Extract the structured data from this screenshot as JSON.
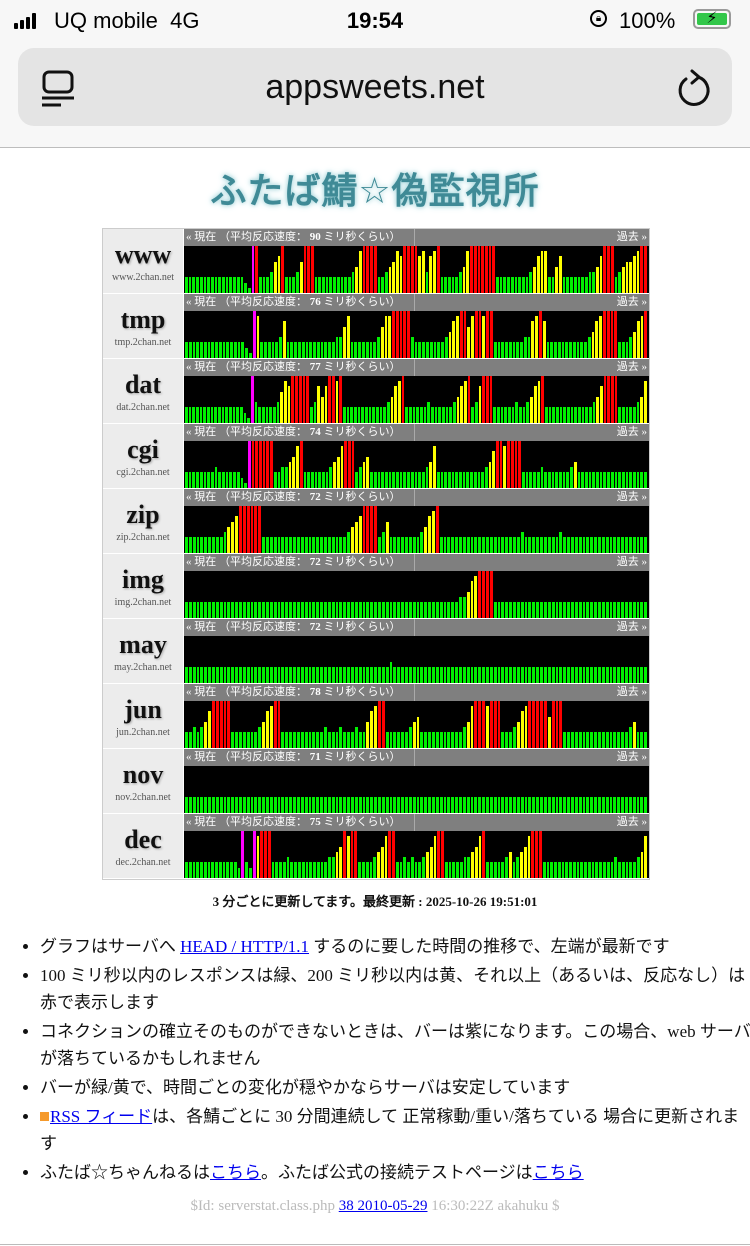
{
  "status_bar": {
    "carrier": "UQ mobile",
    "network": "4G",
    "time": "19:54",
    "battery": "100%"
  },
  "browser": {
    "url": "appsweets.net"
  },
  "page": {
    "title": "ふたば鯖☆偽監視所",
    "header_prefix": "« 現在 （平均反応速度： ",
    "header_suffix": " ミリ秒くらい）",
    "past_label": "過去 »",
    "servers": [
      {
        "name": "www",
        "host": "www.2chan.net",
        "avg_ms": "90",
        "levels": "333333333333333321m9333467933346999333333333345899993345687999978478933333458999999933333333345788335733333334457999345667899"
      },
      {
        "name": "tmp",
        "host": "tmp.2chan.net",
        "avg_ms": "76",
        "levels": "333333333333333321m83333347333333333333344683333333468899999433333333457899689989933333333447897333333333334578999933345789"
      },
      {
        "name": "dat",
        "host": "dat.2chan.net",
        "avg_ms": "77",
        "levels": "333333333333333321m43333346879999934757998933333333333345789333333433333345789347999333333433457893333333333333457999933333458"
      },
      {
        "name": "cgi",
        "host": "cgi.2chan.net",
        "avg_ms": "74",
        "levels": "33333333433333321m99999933445689333333345689993456333333333333333458333333333333345799899993333343333333453333333333333333333"
      },
      {
        "name": "zip",
        "host": "zip.2chan.net",
        "avg_ms": "72",
        "levels": "333333333345679999993333333333333333333333456799993463333333345789333333333333333333333433333333343333333333333333333333"
      },
      {
        "name": "img",
        "host": "img.2chan.net",
        "avg_ms": "72",
        "levels": "333333333333333333333333333333333333333333333333333333333333333333333334457899993333333333333333333333333333333333333333"
      },
      {
        "name": "may",
        "host": "may.2chan.net",
        "avg_ms": "72",
        "levels": "333333333333333333333333333333333333333333333333333334333333333333333333333333333333333333333333333333333333333333333333"
      },
      {
        "name": "jun",
        "host": "jun.2chan.net",
        "avg_ms": "78",
        "levels": "334345799999333333345789933333333333433343334335789933333345633333333333458999899933345789999969993333333333333333345333"
      },
      {
        "name": "nov",
        "host": "nov.2chan.net",
        "avg_ms": "71",
        "levels": "333333333333333333333333333333333333333333333333333333333333333333333333333333333333333333333333333333333333333333333333"
      },
      {
        "name": "dec",
        "host": "dec.2chan.net",
        "avg_ms": "75",
        "levels": "333333333333332m32m89993333433333333334456989933334568993343433456899333334456893333345345689993333333333333333333433333458"
      }
    ],
    "update_note": "3 分ごとに更新してます。最終更新 : 2025-10-26 19:51:01",
    "notes": {
      "n1_pre": "グラフはサーバへ ",
      "n1_link": "HEAD / HTTP/1.1",
      "n1_post": " するのに要した時間の推移で、左端が最新です",
      "n2": "100 ミリ秒以内のレスポンスは緑、200 ミリ秒以内は黄、それ以上（あるいは、反応なし）は赤で表示します",
      "n3": "コネクションの確立そのものができないときは、バーは紫になります。この場合、web サーバが落ちているかもしれません",
      "n4": "バーが緑/黄で、時間ごとの変化が穏やかならサーバは安定しています",
      "n5_link": "RSS フィード",
      "n5_post": "は、各鯖ごとに 30 分間連続して 正常稼動/重い/落ちている 場合に更新されます",
      "n6_pre": "ふたば☆ちゃんねるは",
      "n6_link1": "こちら",
      "n6_mid": "。ふたば公式の接続テストページは",
      "n6_link2": "こちら"
    },
    "footer": {
      "pre": "$Id: serverstat.class.php ",
      "link": "38 2010-05-29",
      "post": " 16:30:22Z akahuku $"
    }
  },
  "colors": {
    "green": "#00f000",
    "yellow": "#ffff00",
    "red": "#ff0000",
    "magenta": "#ff00ff",
    "title": "#3f8a96"
  }
}
